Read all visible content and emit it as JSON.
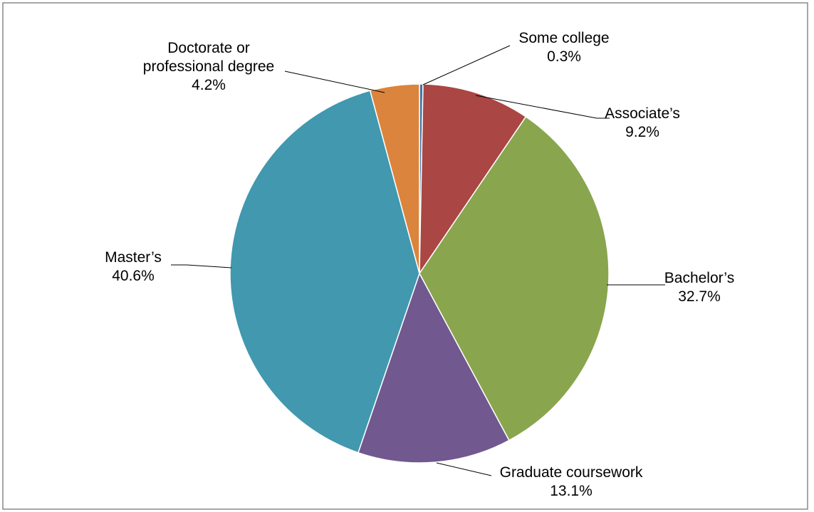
{
  "chart_data": {
    "type": "pie",
    "title": "",
    "start_angle_deg": 0,
    "direction": "clockwise",
    "legend": "none",
    "slices": [
      {
        "name": "Some college",
        "value": 0.3,
        "label": "0.3%",
        "color": "#4573a7"
      },
      {
        "name": "Associate’s",
        "value": 9.2,
        "label": "9.2%",
        "color": "#aa4643"
      },
      {
        "name": "Bachelor’s",
        "value": 32.7,
        "label": "32.7%",
        "color": "#89a54e"
      },
      {
        "name": "Graduate coursework",
        "value": 13.1,
        "label": "13.1%",
        "color": "#71588f"
      },
      {
        "name": "Master’s",
        "value": 40.6,
        "label": "40.6%",
        "color": "#4198af"
      },
      {
        "name": "Doctorate or professional degree",
        "name_lines": [
          "Doctorate or",
          "professional degree"
        ],
        "value": 4.2,
        "label": "4.2%",
        "color": "#db843d"
      }
    ]
  }
}
